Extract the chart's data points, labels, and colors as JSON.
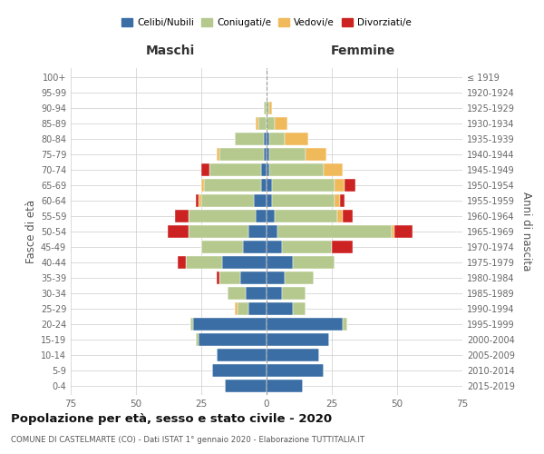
{
  "age_groups": [
    "0-4",
    "5-9",
    "10-14",
    "15-19",
    "20-24",
    "25-29",
    "30-34",
    "35-39",
    "40-44",
    "45-49",
    "50-54",
    "55-59",
    "60-64",
    "65-69",
    "70-74",
    "75-79",
    "80-84",
    "85-89",
    "90-94",
    "95-99",
    "100+"
  ],
  "birth_years": [
    "2015-2019",
    "2010-2014",
    "2005-2009",
    "2000-2004",
    "1995-1999",
    "1990-1994",
    "1985-1989",
    "1980-1984",
    "1975-1979",
    "1970-1974",
    "1965-1969",
    "1960-1964",
    "1955-1959",
    "1950-1954",
    "1945-1949",
    "1940-1944",
    "1935-1939",
    "1930-1934",
    "1925-1929",
    "1920-1924",
    "≤ 1919"
  ],
  "males": {
    "celibi": [
      16,
      21,
      19,
      26,
      28,
      7,
      8,
      10,
      17,
      9,
      7,
      4,
      5,
      2,
      2,
      1,
      1,
      0,
      0,
      0,
      0
    ],
    "coniugati": [
      0,
      0,
      0,
      1,
      1,
      4,
      7,
      8,
      14,
      16,
      23,
      26,
      20,
      22,
      20,
      17,
      11,
      3,
      1,
      0,
      0
    ],
    "vedovi": [
      0,
      0,
      0,
      0,
      0,
      1,
      0,
      0,
      0,
      0,
      0,
      0,
      1,
      1,
      0,
      1,
      0,
      1,
      0,
      0,
      0
    ],
    "divorziati": [
      0,
      0,
      0,
      0,
      0,
      0,
      0,
      1,
      3,
      0,
      8,
      5,
      1,
      0,
      3,
      0,
      0,
      0,
      0,
      0,
      0
    ]
  },
  "females": {
    "nubili": [
      14,
      22,
      20,
      24,
      29,
      10,
      6,
      7,
      10,
      6,
      4,
      3,
      2,
      2,
      1,
      1,
      1,
      0,
      0,
      0,
      0
    ],
    "coniugate": [
      0,
      0,
      0,
      0,
      2,
      5,
      9,
      11,
      16,
      19,
      44,
      24,
      24,
      24,
      21,
      14,
      6,
      3,
      1,
      0,
      0
    ],
    "vedove": [
      0,
      0,
      0,
      0,
      0,
      0,
      0,
      0,
      0,
      0,
      1,
      2,
      2,
      4,
      7,
      8,
      9,
      5,
      1,
      0,
      0
    ],
    "divorziate": [
      0,
      0,
      0,
      0,
      0,
      0,
      0,
      0,
      0,
      8,
      7,
      4,
      2,
      4,
      0,
      0,
      0,
      0,
      0,
      0,
      0
    ]
  },
  "colors": {
    "celibi": "#3a6ea5",
    "coniugati": "#b5c98e",
    "vedovi": "#f0b95a",
    "divorziati": "#cc2222"
  },
  "xlim": 75,
  "title": "Popolazione per età, sesso e stato civile - 2020",
  "subtitle": "COMUNE DI CASTELMARTE (CO) - Dati ISTAT 1° gennaio 2020 - Elaborazione TUTTITALIA.IT",
  "ylabel_left": "Fasce di età",
  "ylabel_right": "Anni di nascita",
  "xlabel_left": "Maschi",
  "xlabel_right": "Femmine"
}
